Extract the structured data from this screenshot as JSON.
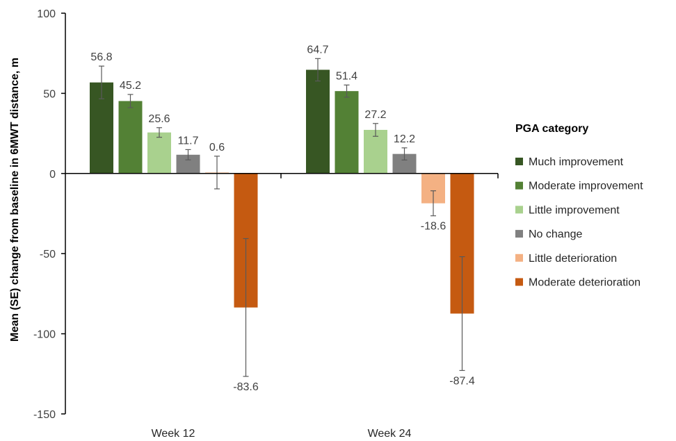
{
  "chart_data": {
    "type": "bar",
    "categories": [
      "Week 12",
      "Week 24"
    ],
    "ylabel": "Mean (SE) change from baseline in 6MWT distance, m",
    "ylim": [
      -150,
      100
    ],
    "yticks": [
      100,
      50,
      0,
      -50,
      -100,
      -150
    ],
    "grid": false,
    "legend": {
      "title": "PGA category",
      "placement": "right"
    },
    "series": [
      {
        "name": "Much improvement",
        "color": "#375623",
        "values": [
          56.8,
          64.7
        ],
        "labels": [
          "56.8",
          "64.7"
        ],
        "se": [
          10.2,
          7.0
        ]
      },
      {
        "name": "Moderate improvement",
        "color": "#538135",
        "values": [
          45.2,
          51.4
        ],
        "labels": [
          "45.2",
          "51.4"
        ],
        "se": [
          4.1,
          3.8
        ]
      },
      {
        "name": "Little improvement",
        "color": "#A9D18E",
        "values": [
          25.6,
          27.2
        ],
        "labels": [
          "25.6",
          "27.2"
        ],
        "se": [
          3.0,
          4.0
        ]
      },
      {
        "name": "No change",
        "color": "#808080",
        "values": [
          11.7,
          12.2
        ],
        "labels": [
          "11.7",
          "12.2"
        ],
        "se": [
          3.2,
          3.8
        ]
      },
      {
        "name": "Little deterioration",
        "color": "#F4B183",
        "values": [
          0.6,
          -18.6
        ],
        "labels": [
          "0.6",
          "-18.6"
        ],
        "se": [
          10.2,
          7.8
        ]
      },
      {
        "name": "Moderate deterioration",
        "color": "#C55A11",
        "values": [
          -83.6,
          -87.4
        ],
        "labels": [
          "-83.6",
          "-87.4"
        ],
        "se": [
          43.0,
          35.5
        ]
      }
    ]
  }
}
